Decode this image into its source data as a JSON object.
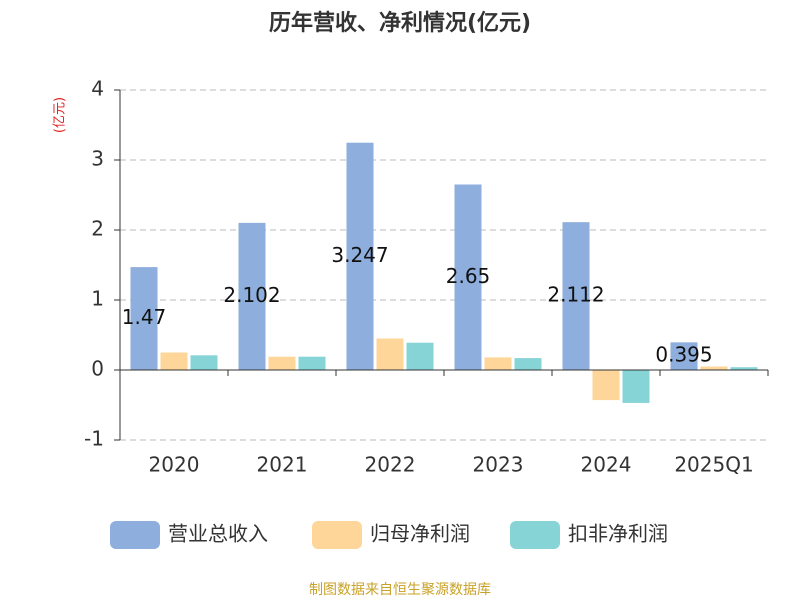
{
  "chart_data": {
    "type": "bar",
    "title": "历年营收、净利情况(亿元)",
    "y_label": "(亿元)",
    "source": "制图数据来自恒生聚源数据库",
    "categories": [
      "2020",
      "2021",
      "2022",
      "2023",
      "2024",
      "2025Q1"
    ],
    "series": [
      {
        "name": "营业总收入",
        "color": "#8eaedd",
        "values": [
          1.47,
          2.102,
          3.247,
          2.65,
          2.112,
          0.395
        ],
        "show_labels": true
      },
      {
        "name": "归母净利润",
        "color": "#ffd699",
        "values": [
          0.25,
          0.19,
          0.45,
          0.18,
          -0.43,
          0.05
        ]
      },
      {
        "name": "扣非净利润",
        "color": "#87d4d6",
        "values": [
          0.21,
          0.19,
          0.39,
          0.17,
          -0.47,
          0.04
        ]
      }
    ],
    "ylim": [
      -1,
      4
    ],
    "yticks": [
      -1,
      0,
      1,
      2,
      3,
      4
    ],
    "grid": true,
    "legend": "bottom"
  }
}
